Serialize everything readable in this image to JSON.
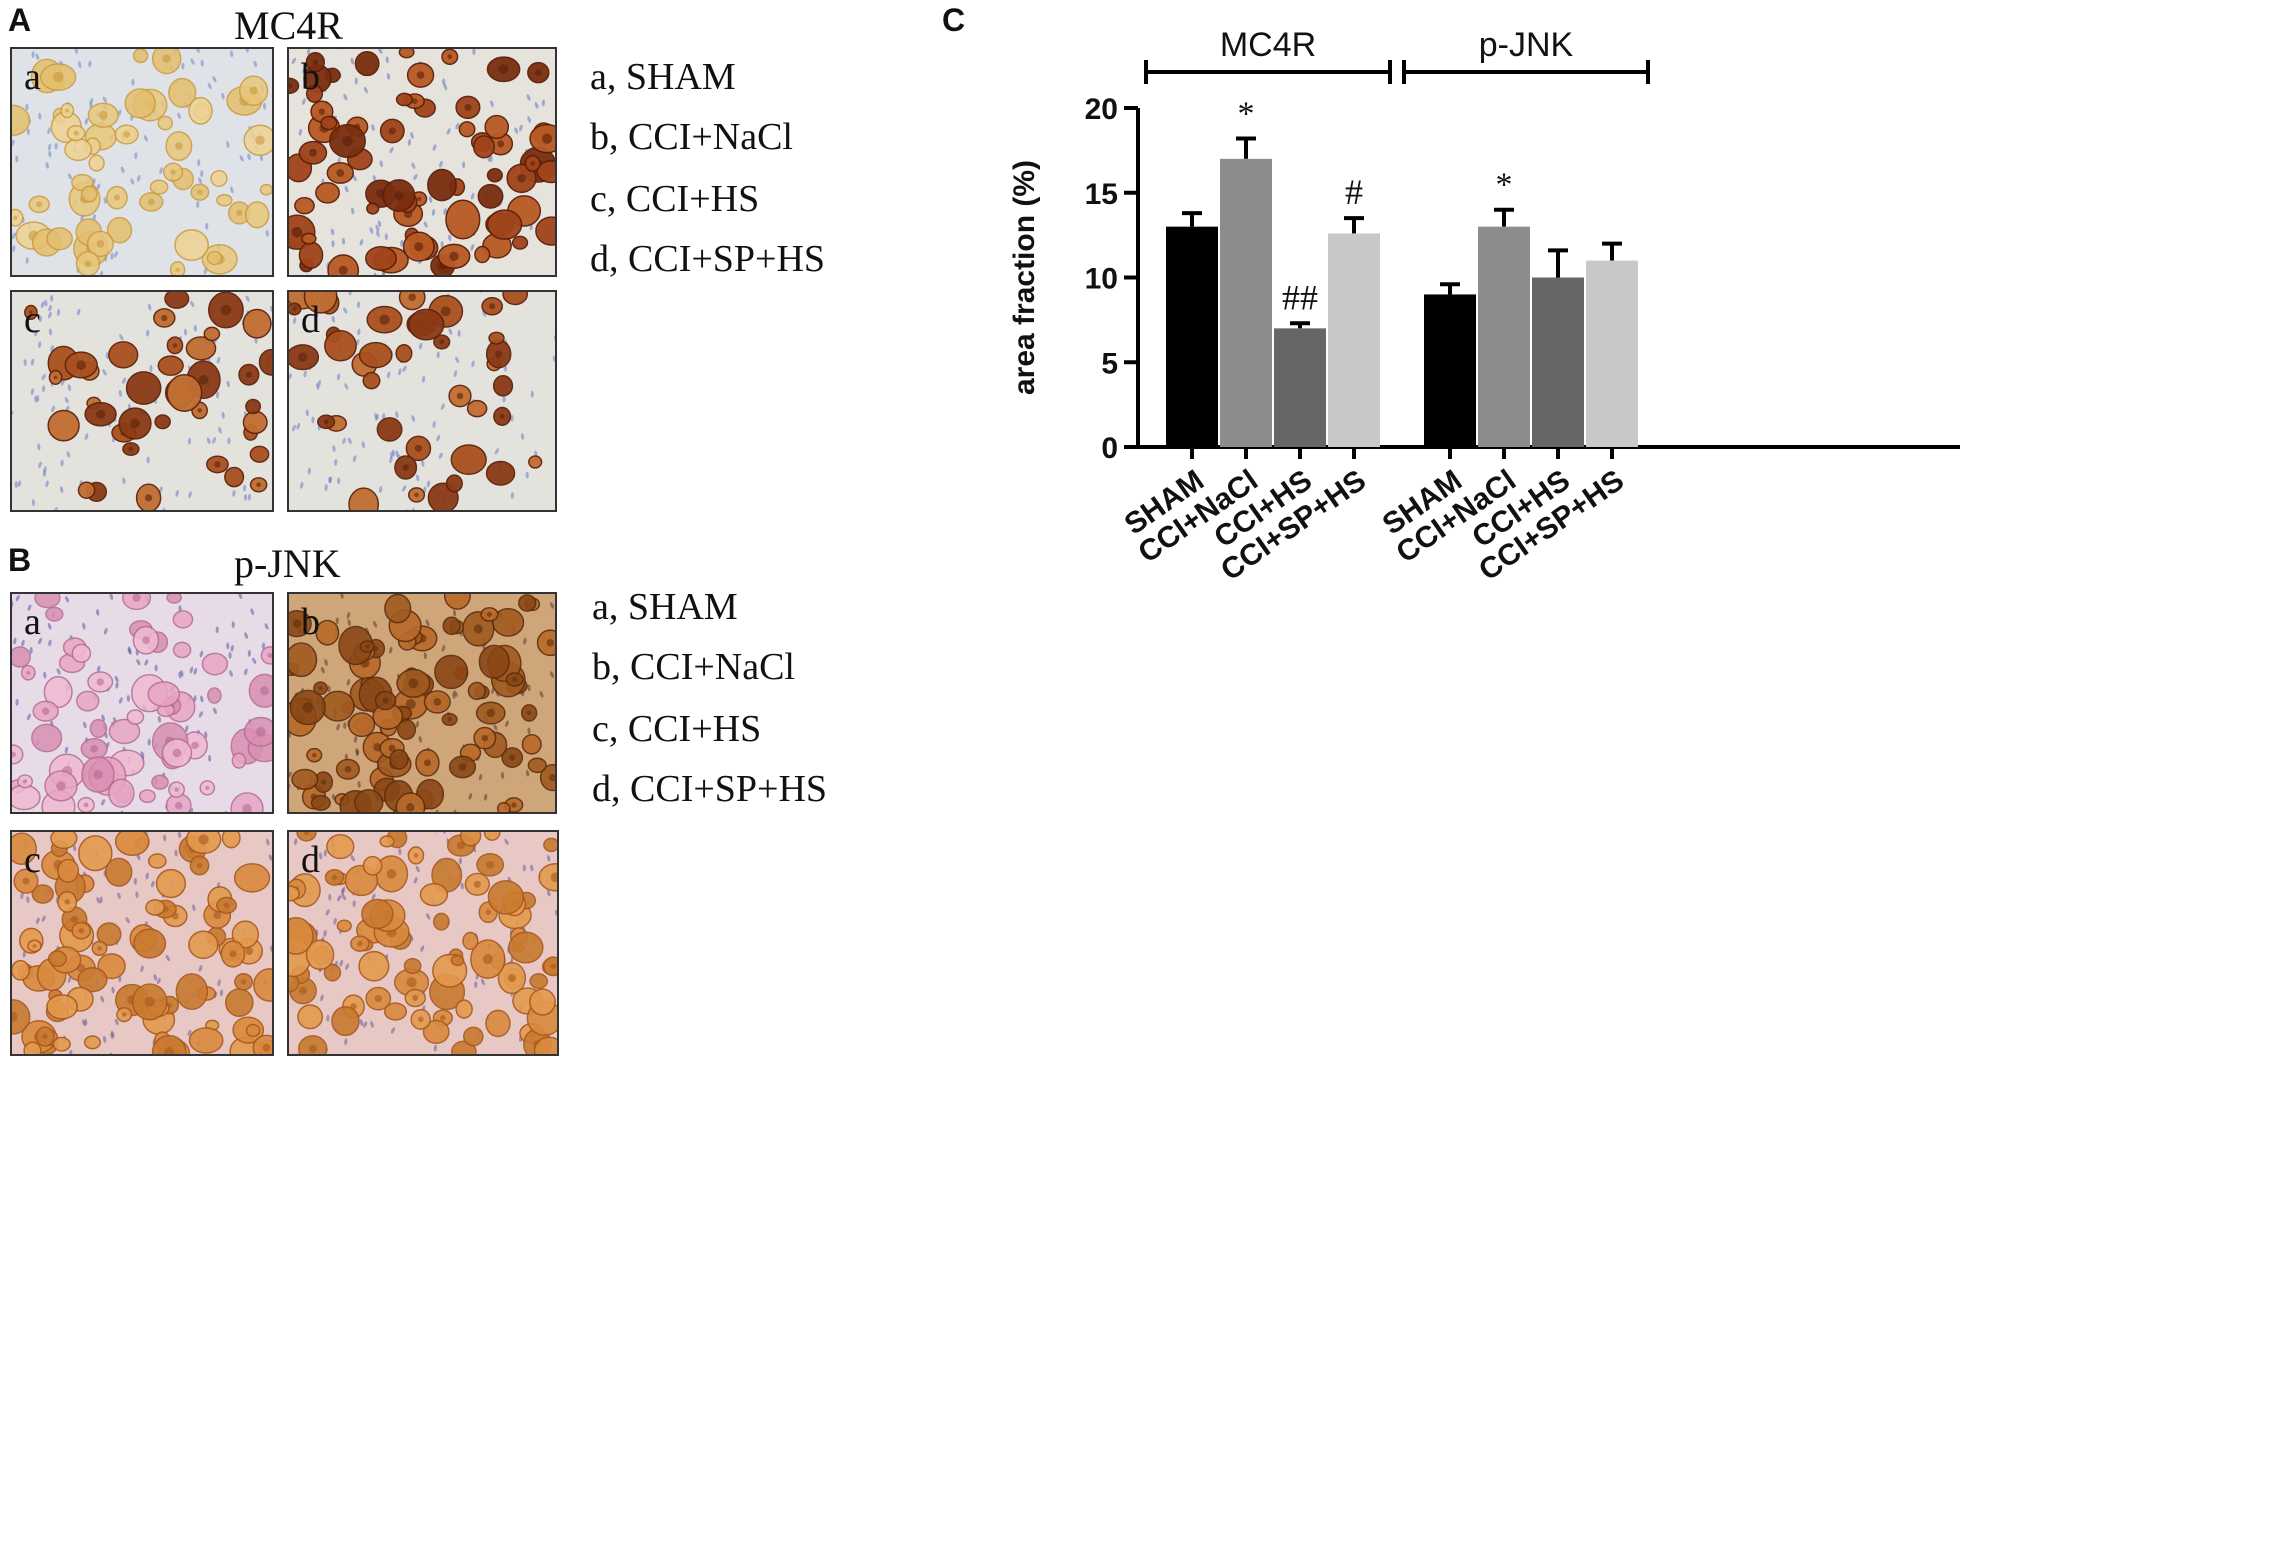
{
  "panelA": {
    "letter": "A",
    "title": "MC4R",
    "images": [
      {
        "label": "a",
        "stain": "faint"
      },
      {
        "label": "b",
        "stain": "strong"
      },
      {
        "label": "c",
        "stain": "medium"
      },
      {
        "label": "d",
        "stain": "medium"
      }
    ],
    "legend": [
      "a,  SHAM",
      "b,  CCI+NaCl",
      "c,  CCI+HS",
      "d,  CCI+SP+HS"
    ]
  },
  "panelB": {
    "letter": "B",
    "title": "p-JNK",
    "images": [
      {
        "label": "a",
        "stain": "pink"
      },
      {
        "label": "b",
        "stain": "brown-strong"
      },
      {
        "label": "c",
        "stain": "orange"
      },
      {
        "label": "d",
        "stain": "orange"
      }
    ],
    "legend": [
      "a,  SHAM",
      "b,  CCI+NaCl",
      "c,  CCI+HS",
      "d,  CCI+SP+HS"
    ]
  },
  "panelC": {
    "letter": "C"
  },
  "chart_data": {
    "type": "bar",
    "ylabel": "area fraction (%)",
    "ylim": [
      0,
      20
    ],
    "yticks": [
      0,
      5,
      10,
      15,
      20
    ],
    "groups": [
      {
        "name": "MC4R",
        "categories": [
          "SHAM",
          "CCI+NaCl",
          "CCI+HS",
          "CCI+SP+HS"
        ],
        "values": [
          13.0,
          17.0,
          7.0,
          12.6
        ],
        "errors": [
          0.8,
          1.2,
          0.3,
          0.9
        ],
        "annotations": [
          "",
          "*",
          "##",
          "#"
        ]
      },
      {
        "name": "p-JNK",
        "categories": [
          "SHAM",
          "CCI+NaCl",
          "CCI+HS",
          "CCI+SP+HS"
        ],
        "values": [
          9.0,
          13.0,
          10.0,
          11.0
        ],
        "errors": [
          0.6,
          1.0,
          1.6,
          1.0
        ],
        "annotations": [
          "",
          "*",
          "",
          ""
        ]
      }
    ],
    "bar_colors": [
      "#000000",
      "#8c8c8c",
      "#666666",
      "#c8c8c8"
    ],
    "grid": false
  }
}
